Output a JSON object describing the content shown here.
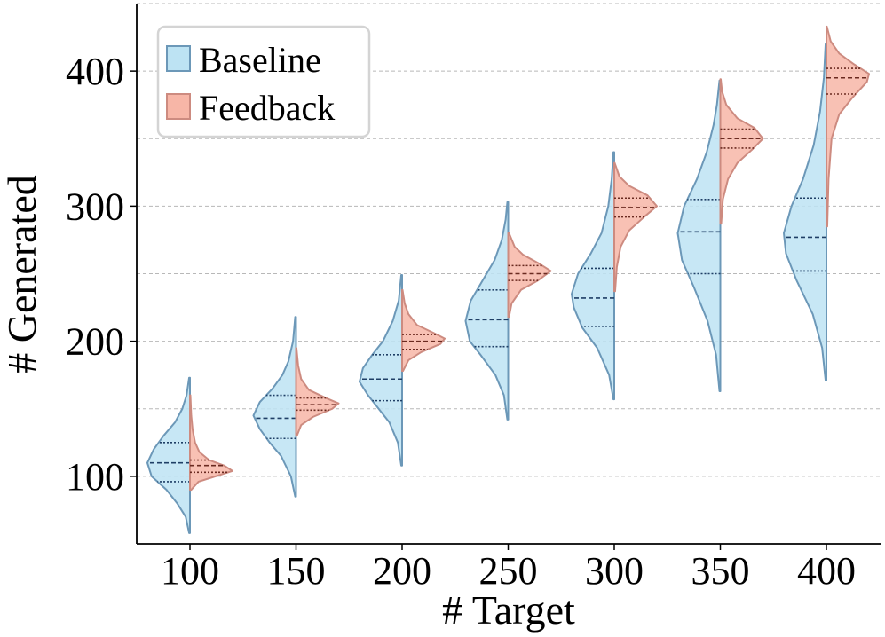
{
  "chart_data": {
    "type": "violin",
    "title": "",
    "xlabel": "# Target",
    "ylabel": "# Generated",
    "categories": [
      "100",
      "150",
      "200",
      "250",
      "300",
      "350",
      "400"
    ],
    "x": [
      100,
      150,
      200,
      250,
      300,
      350,
      400
    ],
    "ylim": [
      50,
      450
    ],
    "yticks": [
      100,
      200,
      300,
      400
    ],
    "ytick_labels": [
      "100",
      "200",
      "300",
      "400"
    ],
    "ygrid": [
      100,
      150,
      200,
      250,
      300,
      350,
      400,
      450
    ],
    "legend_position": "top-left",
    "series": [
      {
        "name": "Baseline",
        "side": "left",
        "fill": "#bde3f3",
        "stroke": "#6c98b8",
        "quartile_color": "#1f3f66",
        "violins": [
          {
            "x": 100,
            "min": 58,
            "max": 173,
            "q1": 96,
            "median": 110,
            "q3": 125,
            "profile": [
              [
                58,
                0.02
              ],
              [
                70,
                0.1
              ],
              [
                80,
                0.3
              ],
              [
                90,
                0.55
              ],
              [
                100,
                0.9
              ],
              [
                110,
                1.0
              ],
              [
                120,
                0.85
              ],
              [
                130,
                0.62
              ],
              [
                140,
                0.35
              ],
              [
                150,
                0.18
              ],
              [
                160,
                0.08
              ],
              [
                173,
                0.02
              ]
            ]
          },
          {
            "x": 150,
            "min": 85,
            "max": 218,
            "q1": 128,
            "median": 143,
            "q3": 160,
            "profile": [
              [
                85,
                0.02
              ],
              [
                100,
                0.12
              ],
              [
                115,
                0.35
              ],
              [
                125,
                0.62
              ],
              [
                135,
                0.85
              ],
              [
                145,
                1.0
              ],
              [
                155,
                0.85
              ],
              [
                165,
                0.55
              ],
              [
                175,
                0.32
              ],
              [
                185,
                0.18
              ],
              [
                200,
                0.07
              ],
              [
                218,
                0.02
              ]
            ]
          },
          {
            "x": 200,
            "min": 108,
            "max": 249,
            "q1": 156,
            "median": 172,
            "q3": 190,
            "profile": [
              [
                108,
                0.02
              ],
              [
                125,
                0.1
              ],
              [
                140,
                0.3
              ],
              [
                150,
                0.55
              ],
              [
                160,
                0.8
              ],
              [
                170,
                1.0
              ],
              [
                180,
                0.92
              ],
              [
                190,
                0.7
              ],
              [
                200,
                0.45
              ],
              [
                215,
                0.22
              ],
              [
                230,
                0.08
              ],
              [
                249,
                0.02
              ]
            ]
          },
          {
            "x": 250,
            "min": 142,
            "max": 303,
            "q1": 196,
            "median": 216,
            "q3": 238,
            "profile": [
              [
                142,
                0.02
              ],
              [
                160,
                0.1
              ],
              [
                175,
                0.3
              ],
              [
                190,
                0.65
              ],
              [
                200,
                0.9
              ],
              [
                215,
                1.0
              ],
              [
                230,
                0.88
              ],
              [
                245,
                0.6
              ],
              [
                260,
                0.32
              ],
              [
                275,
                0.15
              ],
              [
                290,
                0.06
              ],
              [
                303,
                0.02
              ]
            ]
          },
          {
            "x": 300,
            "min": 157,
            "max": 340,
            "q1": 211,
            "median": 232,
            "q3": 254,
            "profile": [
              [
                157,
                0.02
              ],
              [
                175,
                0.12
              ],
              [
                195,
                0.4
              ],
              [
                210,
                0.75
              ],
              [
                225,
                0.95
              ],
              [
                235,
                1.0
              ],
              [
                250,
                0.85
              ],
              [
                265,
                0.55
              ],
              [
                280,
                0.3
              ],
              [
                300,
                0.14
              ],
              [
                320,
                0.06
              ],
              [
                340,
                0.02
              ]
            ]
          },
          {
            "x": 350,
            "min": 163,
            "max": 393,
            "q1": 250,
            "median": 281,
            "q3": 305,
            "profile": [
              [
                163,
                0.02
              ],
              [
                190,
                0.1
              ],
              [
                215,
                0.3
              ],
              [
                240,
                0.62
              ],
              [
                260,
                0.9
              ],
              [
                280,
                1.0
              ],
              [
                300,
                0.85
              ],
              [
                320,
                0.55
              ],
              [
                340,
                0.32
              ],
              [
                360,
                0.16
              ],
              [
                375,
                0.08
              ],
              [
                393,
                0.02
              ]
            ]
          },
          {
            "x": 400,
            "min": 171,
            "max": 420,
            "q1": 252,
            "median": 277,
            "q3": 306,
            "profile": [
              [
                171,
                0.02
              ],
              [
                195,
                0.1
              ],
              [
                220,
                0.32
              ],
              [
                245,
                0.7
              ],
              [
                265,
                0.95
              ],
              [
                280,
                1.0
              ],
              [
                300,
                0.82
              ],
              [
                320,
                0.55
              ],
              [
                345,
                0.3
              ],
              [
                370,
                0.15
              ],
              [
                395,
                0.06
              ],
              [
                420,
                0.02
              ]
            ]
          }
        ]
      },
      {
        "name": "Feedback",
        "side": "right",
        "fill": "#f7b6a7",
        "stroke": "#cd8b80",
        "quartile_color": "#6a2a20",
        "violins": [
          {
            "x": 100,
            "min": 90,
            "max": 160,
            "q1": 103,
            "median": 108,
            "q3": 112,
            "profile": [
              [
                90,
                0.03
              ],
              [
                96,
                0.2
              ],
              [
                100,
                0.6
              ],
              [
                104,
                1.0
              ],
              [
                108,
                0.8
              ],
              [
                112,
                0.45
              ],
              [
                118,
                0.22
              ],
              [
                125,
                0.12
              ],
              [
                135,
                0.06
              ],
              [
                145,
                0.03
              ],
              [
                160,
                0.01
              ]
            ]
          },
          {
            "x": 150,
            "min": 130,
            "max": 195,
            "q1": 149,
            "median": 153,
            "q3": 158,
            "profile": [
              [
                130,
                0.02
              ],
              [
                138,
                0.12
              ],
              [
                144,
                0.4
              ],
              [
                150,
                0.85
              ],
              [
                154,
                1.0
              ],
              [
                158,
                0.7
              ],
              [
                164,
                0.3
              ],
              [
                172,
                0.12
              ],
              [
                182,
                0.05
              ],
              [
                195,
                0.01
              ]
            ]
          },
          {
            "x": 200,
            "min": 178,
            "max": 238,
            "q1": 194,
            "median": 200,
            "q3": 205,
            "profile": [
              [
                178,
                0.02
              ],
              [
                186,
                0.15
              ],
              [
                192,
                0.45
              ],
              [
                198,
                0.9
              ],
              [
                202,
                1.0
              ],
              [
                206,
                0.75
              ],
              [
                212,
                0.35
              ],
              [
                220,
                0.15
              ],
              [
                228,
                0.06
              ],
              [
                238,
                0.01
              ]
            ]
          },
          {
            "x": 250,
            "min": 218,
            "max": 280,
            "q1": 245,
            "median": 250,
            "q3": 256,
            "profile": [
              [
                218,
                0.02
              ],
              [
                228,
                0.08
              ],
              [
                238,
                0.3
              ],
              [
                245,
                0.7
              ],
              [
                252,
                1.0
              ],
              [
                258,
                0.7
              ],
              [
                264,
                0.35
              ],
              [
                270,
                0.15
              ],
              [
                280,
                0.02
              ]
            ]
          },
          {
            "x": 300,
            "min": 237,
            "max": 332,
            "q1": 292,
            "median": 299,
            "q3": 306,
            "profile": [
              [
                237,
                0.02
              ],
              [
                255,
                0.06
              ],
              [
                270,
                0.15
              ],
              [
                282,
                0.35
              ],
              [
                292,
                0.7
              ],
              [
                300,
                1.0
              ],
              [
                308,
                0.78
              ],
              [
                315,
                0.35
              ],
              [
                322,
                0.12
              ],
              [
                332,
                0.01
              ]
            ]
          },
          {
            "x": 350,
            "min": 287,
            "max": 394,
            "q1": 343,
            "median": 350,
            "q3": 357,
            "profile": [
              [
                287,
                0.02
              ],
              [
                305,
                0.06
              ],
              [
                320,
                0.18
              ],
              [
                332,
                0.4
              ],
              [
                342,
                0.75
              ],
              [
                350,
                1.0
              ],
              [
                358,
                0.8
              ],
              [
                365,
                0.4
              ],
              [
                375,
                0.14
              ],
              [
                385,
                0.04
              ],
              [
                394,
                0.01
              ]
            ]
          },
          {
            "x": 400,
            "min": 285,
            "max": 433,
            "q1": 383,
            "median": 395,
            "q3": 402,
            "profile": [
              [
                285,
                0.02
              ],
              [
                320,
                0.05
              ],
              [
                350,
                0.12
              ],
              [
                368,
                0.3
              ],
              [
                380,
                0.6
              ],
              [
                392,
                0.95
              ],
              [
                398,
                1.0
              ],
              [
                405,
                0.65
              ],
              [
                413,
                0.3
              ],
              [
                422,
                0.1
              ],
              [
                433,
                0.01
              ]
            ]
          }
        ]
      }
    ]
  }
}
